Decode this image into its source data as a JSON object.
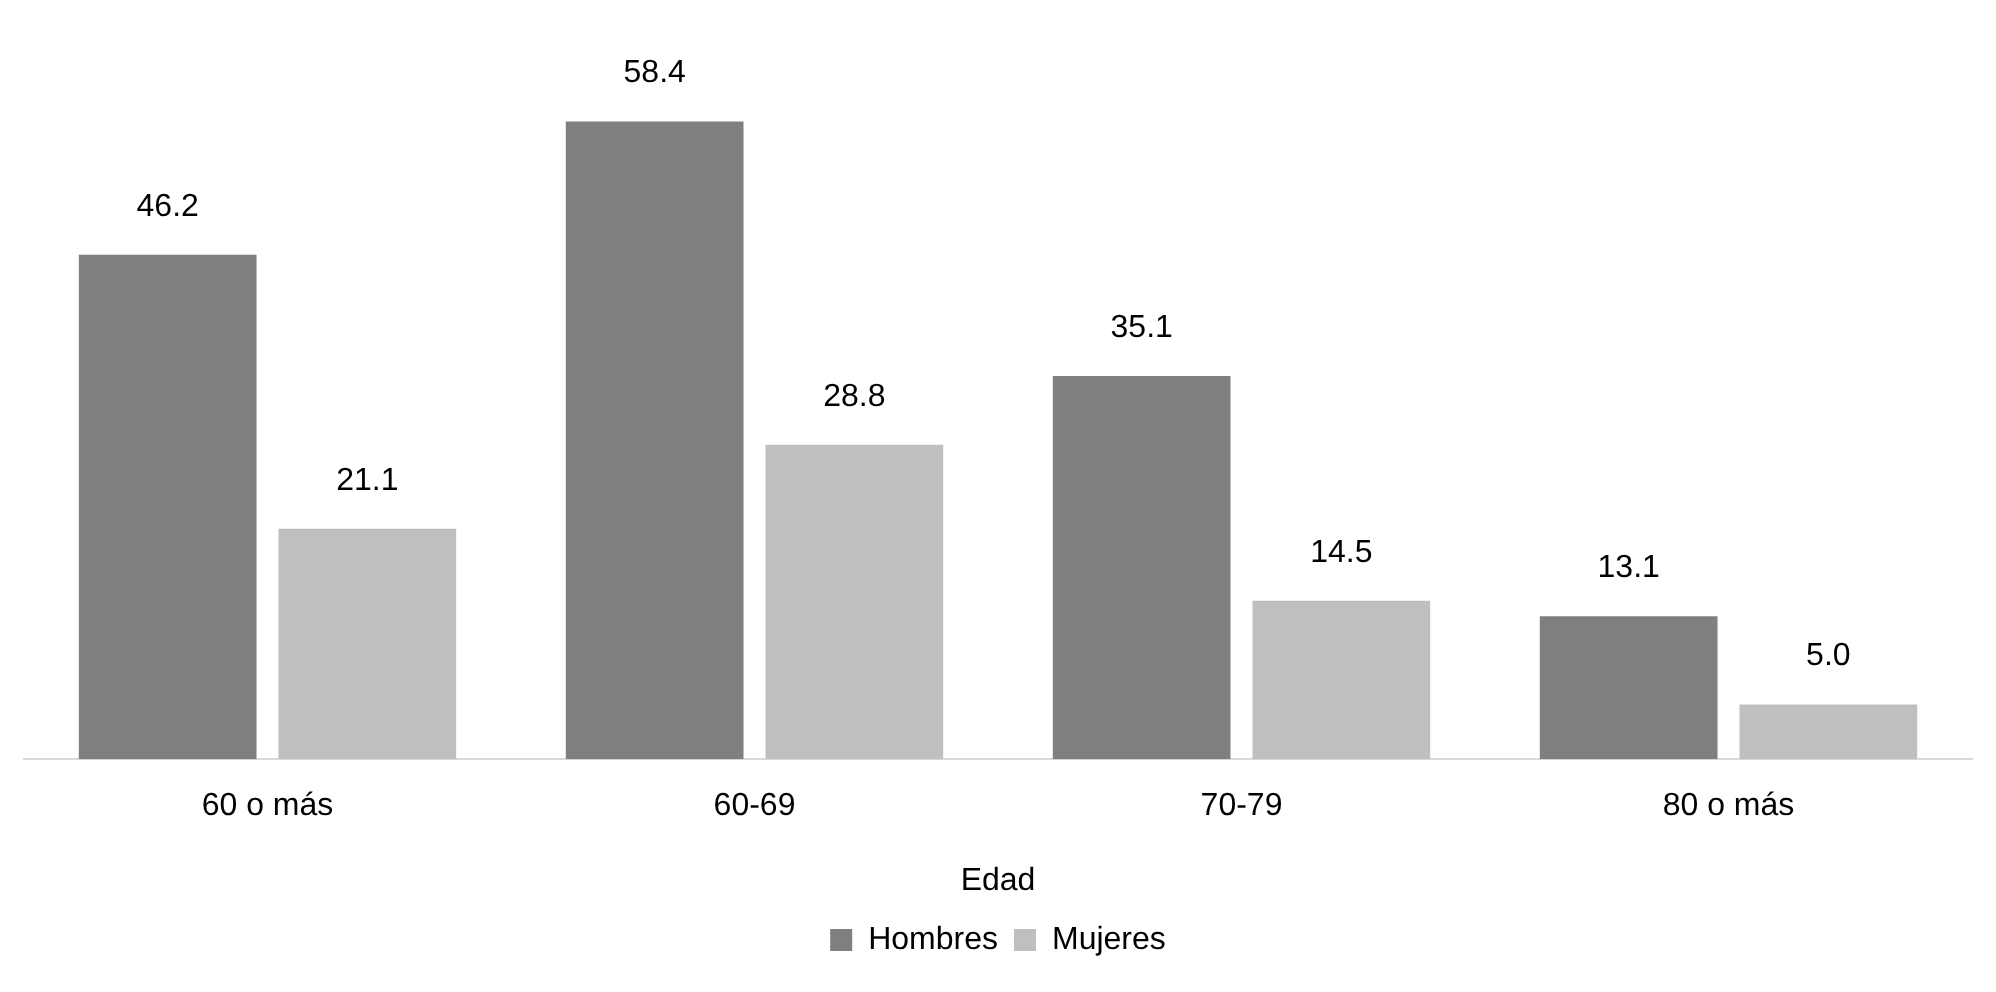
{
  "chart_data": {
    "type": "bar",
    "xlabel": "Edad",
    "categories": [
      "60 o más",
      "60-69",
      "70-79",
      "80 o más"
    ],
    "series": [
      {
        "name": "Hombres",
        "color": "#7f7f7f",
        "values": [
          46.2,
          58.4,
          35.1,
          13.1
        ],
        "value_labels": [
          "46.2",
          "58.4",
          "35.1",
          "13.1"
        ]
      },
      {
        "name": "Mujeres",
        "color": "#bfbfbf",
        "values": [
          21.1,
          28.8,
          14.5,
          5.0
        ],
        "value_labels": [
          "21.1",
          "28.8",
          "14.5",
          "5.0"
        ]
      }
    ],
    "legend": "bottom",
    "grid": false
  }
}
